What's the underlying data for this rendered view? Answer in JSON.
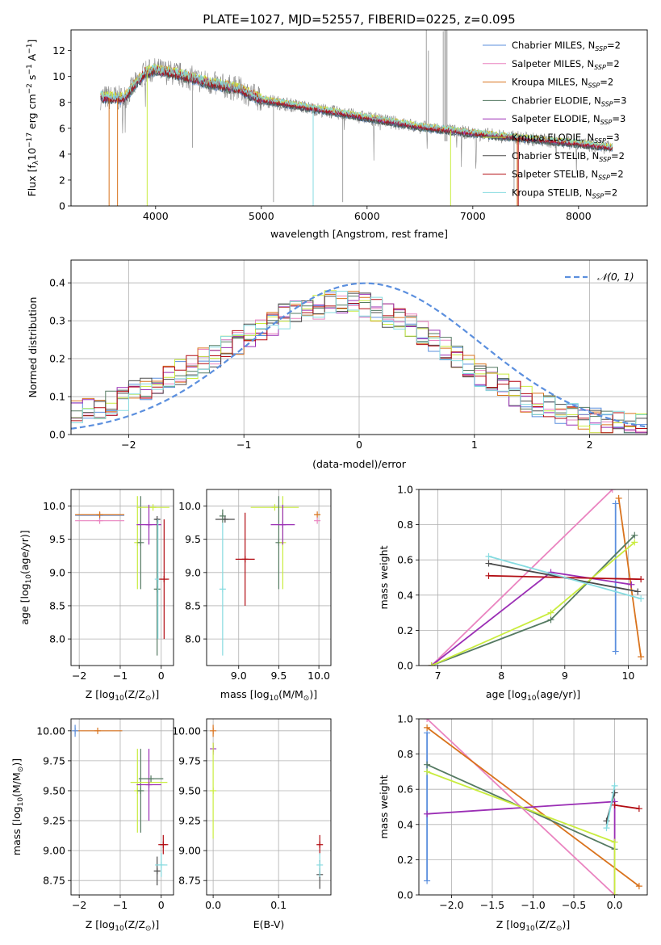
{
  "colors": {
    "chabrier_miles": "#5b8fde",
    "salpeter_miles": "#ea84c0",
    "kroupa_miles": "#d9731d",
    "chabrier_elodie": "#557a62",
    "salpeter_elodie": "#9b2fb5",
    "kroupa_elodie": "#c9ec3f",
    "chabrier_stelib": "#4b4b4b",
    "salpeter_stelib": "#b20c12",
    "kroupa_stelib": "#86dbe0",
    "data": "#888888",
    "gauss": "#5b8fde"
  },
  "legend_entries": [
    {
      "label": "Chabrier MILES, N",
      "sub": "SSP",
      "tail": "=2",
      "color": "#5b8fde"
    },
    {
      "label": "Salpeter MILES, N",
      "sub": "SSP",
      "tail": "=2",
      "color": "#ea84c0"
    },
    {
      "label": "Kroupa MILES, N",
      "sub": "SSP",
      "tail": "=2",
      "color": "#d9731d"
    },
    {
      "label": "Chabrier ELODIE, N",
      "sub": "SSP",
      "tail": "=3",
      "color": "#557a62"
    },
    {
      "label": "Salpeter ELODIE, N",
      "sub": "SSP",
      "tail": "=3",
      "color": "#9b2fb5"
    },
    {
      "label": "Kroupa ELODIE, N",
      "sub": "SSP",
      "tail": "=3",
      "color": "#c9ec3f"
    },
    {
      "label": "Chabrier STELIB, N",
      "sub": "SSP",
      "tail": "=2",
      "color": "#4b4b4b"
    },
    {
      "label": "Salpeter STELIB, N",
      "sub": "SSP",
      "tail": "=2",
      "color": "#b20c12"
    },
    {
      "label": "Kroupa STELIB, N",
      "sub": "SSP",
      "tail": "=2",
      "color": "#86dbe0"
    }
  ],
  "gauss_label": "𝒩(0, 1)",
  "chart_data": [
    {
      "type": "line",
      "title": "PLATE=1027, MJD=52557, FIBERID=0225, z=0.095",
      "xlabel": "wavelength [Angstrom, rest frame]",
      "ylabel_main": "Flux [f",
      "ylabel_sub": "λ",
      "ylabel_mid": "10",
      "ylabel_sup1": "−17",
      "ylabel_mid2": " erg cm",
      "ylabel_sup2": "−2",
      "ylabel_mid3": " s",
      "ylabel_sup3": "−1",
      "ylabel_mid4": " A",
      "ylabel_sup4": "−1",
      "ylabel_end": "]",
      "xlim": [
        3200,
        8650
      ],
      "ylim": [
        0,
        13.6
      ],
      "xticks": [
        4000,
        5000,
        6000,
        7000,
        8000
      ],
      "yticks": [
        0,
        2,
        4,
        6,
        8,
        10,
        12
      ],
      "grid": false,
      "legend_position": "upper right",
      "continuum_x": [
        3500,
        3700,
        3900,
        4000,
        4200,
        4500,
        4800,
        5000,
        5500,
        6000,
        6500,
        7000,
        7500,
        8000,
        8300
      ],
      "continuum_y": [
        8.4,
        8.3,
        10.3,
        10.5,
        10.2,
        9.5,
        9.0,
        8.2,
        7.5,
        6.8,
        6.1,
        5.6,
        5.2,
        4.8,
        4.5
      ]
    },
    {
      "type": "line",
      "xlabel": "(data-model)/error",
      "ylabel": "Normed distribution",
      "xlim": [
        -2.5,
        2.5
      ],
      "ylim": [
        0,
        0.46
      ],
      "xticks": [
        -2,
        -1,
        0,
        1,
        2
      ],
      "yticks": [
        0.0,
        0.1,
        0.2,
        0.3,
        0.4
      ],
      "grid": true,
      "legend_position": "upper right",
      "hist_bin_width": 0.1,
      "hist_envelope_x": [
        -2.5,
        -2.0,
        -1.5,
        -1.0,
        -0.6,
        -0.2,
        0.0,
        0.3,
        0.6,
        1.0,
        1.4,
        1.8,
        2.2,
        2.5
      ],
      "hist_envelope_y": [
        0.05,
        0.1,
        0.17,
        0.25,
        0.32,
        0.35,
        0.35,
        0.31,
        0.26,
        0.17,
        0.1,
        0.05,
        0.03,
        0.025
      ],
      "gaussian": {
        "mean": 0.05,
        "sigma": 1.0
      }
    },
    {
      "type": "scatter",
      "xlabel_main": "Z [log",
      "xlabel_sub": "10",
      "xlabel_end": "(Z/Z",
      "xlabel_sun": "⊙",
      "xlabel_close": ")]",
      "ylabel_main": "age  [log",
      "ylabel_sub": "10",
      "ylabel_end": "(age/yr)]",
      "xlim": [
        -2.2,
        0.3
      ],
      "ylim": [
        7.6,
        10.25
      ],
      "xticks": [
        -2,
        -1,
        0
      ],
      "yticks": [
        8.0,
        8.5,
        9.0,
        9.5,
        10.0
      ],
      "grid": true,
      "points": [
        {
          "series": "salpeter_miles",
          "x": -1.5,
          "y": 9.78,
          "xerr": 0.6,
          "yerr": 0
        },
        {
          "series": "chabrier_miles",
          "x": -1.5,
          "y": 9.86,
          "xerr": 0.6,
          "yerr": 0
        },
        {
          "series": "kroupa_miles",
          "x": -1.5,
          "y": 9.87,
          "xerr": 0.6,
          "yerr": 0
        },
        {
          "series": "kroupa_elodie",
          "x": -0.58,
          "y": 9.45,
          "xerr": 0,
          "yerr": 0.7
        },
        {
          "series": "chabrier_elodie",
          "x": -0.5,
          "y": 9.45,
          "xerr": 0,
          "yerr": 0.7
        },
        {
          "series": "kroupa_elodie",
          "x": -0.2,
          "y": 9.98,
          "xerr": 0.4,
          "yerr": 0
        },
        {
          "series": "salpeter_elodie",
          "x": -0.3,
          "y": 9.72,
          "xerr": 0.3,
          "yerr": 0.3
        },
        {
          "series": "chabrier_stelib",
          "x": -0.1,
          "y": 9.8,
          "xerr": 0.05,
          "yerr": 0
        },
        {
          "series": "chabrier_elodie",
          "x": -0.1,
          "y": 8.75,
          "xerr": 0,
          "yerr": 1.0
        },
        {
          "series": "kroupa_stelib",
          "x": -0.08,
          "y": 8.9,
          "xerr": 0,
          "yerr": 0.9
        },
        {
          "series": "salpeter_stelib",
          "x": 0.07,
          "y": 8.9,
          "xerr": 0.12,
          "yerr": 0.9
        }
      ]
    },
    {
      "type": "scatter",
      "xlabel_main": "mass [log",
      "xlabel_sub": "10",
      "xlabel_end": "(M/M",
      "xlabel_sun": "⊙",
      "xlabel_close": ")]",
      "xlim": [
        8.6,
        10.15
      ],
      "ylim": [
        7.6,
        10.25
      ],
      "xticks": [
        9.0,
        9.5,
        10.0
      ],
      "yticks": [
        8.0,
        8.5,
        9.0,
        9.5,
        10.0
      ],
      "grid": true,
      "points": [
        {
          "series": "chabrier_stelib",
          "x": 8.83,
          "y": 9.8,
          "xerr": 0.12,
          "yerr": 0
        },
        {
          "series": "kroupa_stelib",
          "x": 8.8,
          "y": 8.75,
          "xerr": 0,
          "yerr": 1.0
        },
        {
          "series": "chabrier_elodie",
          "x": 8.8,
          "y": 9.85,
          "xerr": 0,
          "yerr": 0.1
        },
        {
          "series": "salpeter_stelib",
          "x": 9.08,
          "y": 9.2,
          "xerr": 0.12,
          "yerr": 0.7
        },
        {
          "series": "kroupa_elodie",
          "x": 9.45,
          "y": 9.98,
          "xerr": 0.3,
          "yerr": 0
        },
        {
          "series": "chabrier_elodie",
          "x": 9.5,
          "y": 9.45,
          "xerr": 0,
          "yerr": 0.7
        },
        {
          "series": "kroupa_elodie",
          "x": 9.55,
          "y": 9.45,
          "xerr": 0,
          "yerr": 0.7
        },
        {
          "series": "salpeter_elodie",
          "x": 9.55,
          "y": 9.72,
          "xerr": 0.15,
          "yerr": 0.3
        },
        {
          "series": "kroupa_miles",
          "x": 9.98,
          "y": 9.87,
          "xerr": 0,
          "yerr": 0
        },
        {
          "series": "salpeter_miles",
          "x": 9.98,
          "y": 9.78,
          "xerr": 0,
          "yerr": 0
        }
      ]
    },
    {
      "type": "line",
      "xlabel_main": "age  [log",
      "xlabel_sub": "10",
      "xlabel_end": "(age/yr)]",
      "ylabel": "mass weight",
      "xlim": [
        6.7,
        10.3
      ],
      "ylim": [
        0,
        1.0
      ],
      "xticks": [
        7,
        8,
        9,
        10
      ],
      "yticks": [
        0.0,
        0.2,
        0.4,
        0.6,
        0.8,
        1.0
      ],
      "grid": true,
      "series": [
        {
          "key": "chabrier_miles",
          "x": [
            9.8,
            9.8
          ],
          "y": [
            0.08,
            0.92
          ]
        },
        {
          "key": "salpeter_miles",
          "x": [
            6.9,
            9.75
          ],
          "y": [
            0.0,
            1.0
          ]
        },
        {
          "key": "kroupa_miles",
          "x": [
            9.85,
            10.2
          ],
          "y": [
            0.95,
            0.05
          ]
        },
        {
          "key": "chabrier_elodie",
          "x": [
            6.9,
            8.78,
            10.1
          ],
          "y": [
            0.0,
            0.26,
            0.74
          ]
        },
        {
          "key": "salpeter_elodie",
          "x": [
            6.9,
            8.78,
            10.05
          ],
          "y": [
            0.0,
            0.53,
            0.46
          ]
        },
        {
          "key": "kroupa_elodie",
          "x": [
            6.9,
            8.78,
            10.1
          ],
          "y": [
            0.0,
            0.3,
            0.7
          ]
        },
        {
          "key": "chabrier_stelib",
          "x": [
            7.8,
            10.15
          ],
          "y": [
            0.58,
            0.42
          ]
        },
        {
          "key": "salpeter_stelib",
          "x": [
            7.8,
            10.2
          ],
          "y": [
            0.51,
            0.49
          ]
        },
        {
          "key": "kroupa_stelib",
          "x": [
            7.8,
            10.2
          ],
          "y": [
            0.62,
            0.38
          ]
        }
      ]
    },
    {
      "type": "scatter",
      "xlabel_main": "Z [log",
      "xlabel_sub": "10",
      "xlabel_end": "(Z/Z",
      "xlabel_sun": "⊙",
      "xlabel_close": ")]",
      "ylabel_main": "mass [log",
      "ylabel_sub": "10",
      "ylabel_end": "(M/M",
      "ylabel_sun": "⊙",
      "ylabel_close": ")]",
      "xlim": [
        -2.2,
        0.3
      ],
      "ylim": [
        8.63,
        10.1
      ],
      "xticks": [
        -2,
        -1,
        0
      ],
      "yticks": [
        8.75,
        9.0,
        9.25,
        9.5,
        9.75,
        10.0
      ],
      "grid": true,
      "points": [
        {
          "series": "kroupa_miles",
          "x": -1.55,
          "y": 10.0,
          "xerr": 0.6,
          "yerr": 0
        },
        {
          "series": "chabrier_miles",
          "x": -2.1,
          "y": 10.0,
          "xerr": 0,
          "yerr": 0.05
        },
        {
          "series": "kroupa_elodie",
          "x": -0.58,
          "y": 9.5,
          "xerr": 0,
          "yerr": 0.35
        },
        {
          "series": "chabrier_elodie",
          "x": -0.5,
          "y": 9.5,
          "xerr": 0,
          "yerr": 0.35
        },
        {
          "series": "kroupa_elodie",
          "x": -0.3,
          "y": 9.57,
          "xerr": 0.45,
          "yerr": 0
        },
        {
          "series": "salpeter_elodie",
          "x": -0.3,
          "y": 9.55,
          "xerr": 0.3,
          "yerr": 0.3
        },
        {
          "series": "chabrier_elodie",
          "x": -0.25,
          "y": 9.6,
          "xerr": 0.3,
          "yerr": 0
        },
        {
          "series": "chabrier_stelib",
          "x": -0.1,
          "y": 8.83,
          "xerr": 0,
          "yerr": 0.12
        },
        {
          "series": "kroupa_stelib",
          "x": 0.0,
          "y": 8.88,
          "xerr": 0.15,
          "yerr": 0.1
        },
        {
          "series": "salpeter_stelib",
          "x": 0.05,
          "y": 9.05,
          "xerr": 0.12,
          "yerr": 0.08
        }
      ]
    },
    {
      "type": "scatter",
      "xlabel": "E(B-V)",
      "xlim": [
        -0.01,
        0.18
      ],
      "ylim": [
        8.63,
        10.1
      ],
      "xticks": [
        0.0,
        0.1
      ],
      "yticks": [
        8.75,
        9.0,
        9.25,
        9.5,
        9.75,
        10.0
      ],
      "grid": true,
      "points": [
        {
          "series": "kroupa_miles",
          "x": 0.0,
          "y": 10.0,
          "xerr": 0,
          "yerr": 0.05
        },
        {
          "series": "salpeter_elodie",
          "x": 0.0,
          "y": 9.85,
          "xerr": 0,
          "yerr": 0.05
        },
        {
          "series": "kroupa_elodie",
          "x": 0.0,
          "y": 9.5,
          "xerr": 0,
          "yerr": 0.4
        },
        {
          "series": "chabrier_stelib",
          "x": 0.163,
          "y": 8.8,
          "xerr": 0,
          "yerr": 0.12
        },
        {
          "series": "salpeter_stelib",
          "x": 0.163,
          "y": 9.05,
          "xerr": 0,
          "yerr": 0.08
        },
        {
          "series": "kroupa_stelib",
          "x": 0.163,
          "y": 8.88,
          "xerr": 0,
          "yerr": 0.1
        }
      ]
    },
    {
      "type": "line",
      "xlabel_main": "Z [log",
      "xlabel_sub": "10",
      "xlabel_end": "(Z/Z",
      "xlabel_sun": "⊙",
      "xlabel_close": ")]",
      "ylabel": "mass weight",
      "xlim": [
        -2.4,
        0.4
      ],
      "ylim": [
        0,
        1.0
      ],
      "xticks": [
        -2.0,
        -1.5,
        -1.0,
        -0.5,
        0.0
      ],
      "yticks": [
        0.0,
        0.2,
        0.4,
        0.6,
        0.8,
        1.0
      ],
      "grid": true,
      "series": [
        {
          "key": "chabrier_miles",
          "x": [
            -2.3,
            -2.3
          ],
          "y": [
            0.08,
            0.92
          ]
        },
        {
          "key": "salpeter_miles",
          "x": [
            -2.3,
            0.0
          ],
          "y": [
            1.0,
            0.0
          ]
        },
        {
          "key": "kroupa_miles",
          "x": [
            -2.3,
            0.3
          ],
          "y": [
            0.95,
            0.05
          ]
        },
        {
          "key": "chabrier_elodie",
          "x": [
            -2.3,
            0.0
          ],
          "y": [
            0.74,
            0.26
          ]
        },
        {
          "key": "salpeter_elodie",
          "x": [
            -2.3,
            0.0,
            0.0
          ],
          "y": [
            0.46,
            0.53,
            0.0
          ]
        },
        {
          "key": "kroupa_elodie",
          "x": [
            -2.3,
            0.0,
            0.0
          ],
          "y": [
            0.7,
            0.3,
            0.0
          ]
        },
        {
          "key": "chabrier_stelib",
          "x": [
            -0.1,
            0.0
          ],
          "y": [
            0.42,
            0.58
          ]
        },
        {
          "key": "salpeter_stelib",
          "x": [
            0.0,
            0.3
          ],
          "y": [
            0.51,
            0.49
          ]
        },
        {
          "key": "kroupa_stelib",
          "x": [
            -0.1,
            0.0
          ],
          "y": [
            0.38,
            0.62
          ]
        }
      ]
    }
  ]
}
